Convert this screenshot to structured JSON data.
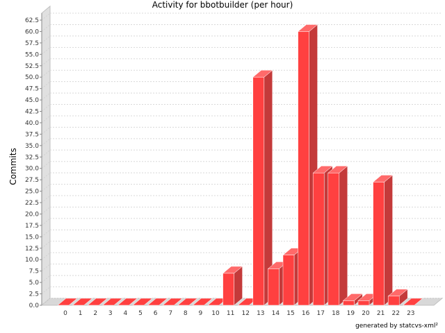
{
  "chart_data": {
    "type": "bar",
    "title": "Activity for bbotbuilder (per hour)",
    "xlabel": "",
    "ylabel": "Commits",
    "categories": [
      "0",
      "1",
      "2",
      "3",
      "4",
      "5",
      "6",
      "7",
      "8",
      "9",
      "10",
      "11",
      "12",
      "13",
      "14",
      "15",
      "16",
      "17",
      "18",
      "19",
      "20",
      "21",
      "22",
      "23"
    ],
    "values": [
      0,
      0,
      0,
      0,
      0,
      0,
      0,
      0,
      0,
      0,
      0,
      7,
      0,
      50,
      8,
      11,
      60,
      29,
      29,
      1,
      1,
      27,
      2,
      0
    ],
    "ylim": [
      0,
      62.5
    ],
    "y_tick_step": 2.5,
    "grid": true,
    "style": "3d",
    "bar_color": "#ff4040",
    "legend": "none"
  },
  "footer": "generated by statcvs-xml²"
}
